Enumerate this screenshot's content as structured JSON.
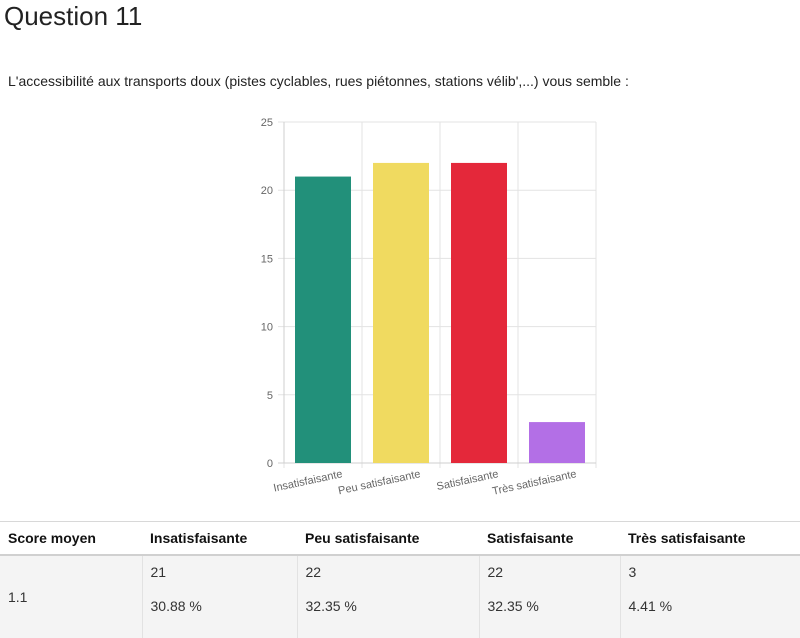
{
  "page": {
    "title": "Question 11",
    "question": "L'accessibilité aux transports doux (pistes cyclables, rues piétonnes, stations vélib',...) vous semble :"
  },
  "chart_data": {
    "type": "bar",
    "categories": [
      "Insatisfaisante",
      "Peu satisfaisante",
      "Satisfaisante",
      "Très satisfaisante"
    ],
    "values": [
      21,
      22,
      22,
      3
    ],
    "colors": [
      "#22907a",
      "#f0da60",
      "#e4283a",
      "#b36fe6"
    ],
    "ylim": [
      0,
      25
    ],
    "yticks": [
      0,
      5,
      10,
      15,
      20,
      25
    ],
    "grid": true,
    "title": "",
    "xlabel": "",
    "ylabel": ""
  },
  "table": {
    "headers": [
      "Score moyen",
      "Insatisfaisante",
      "Peu satisfaisante",
      "Satisfaisante",
      "Très satisfaisante"
    ],
    "score": "1.1",
    "counts": [
      "21",
      "22",
      "22",
      "3"
    ],
    "percents": [
      "30.88 %",
      "32.35 %",
      "32.35 %",
      "4.41 %"
    ]
  }
}
